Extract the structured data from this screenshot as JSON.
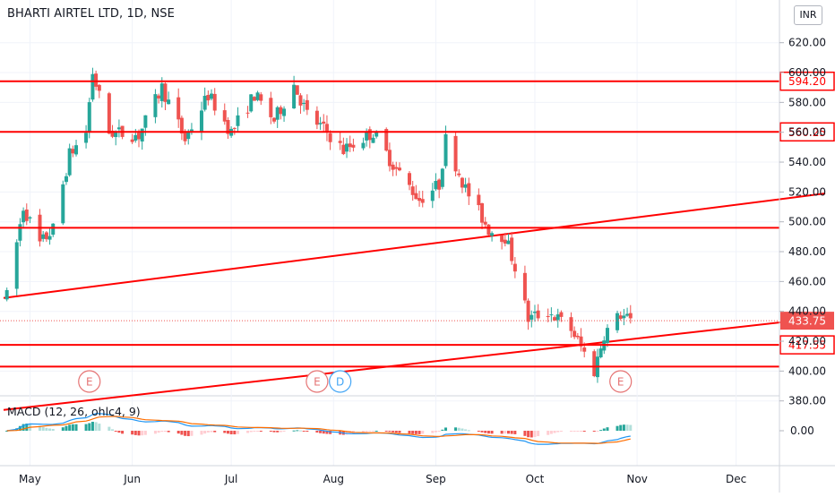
{
  "header": {
    "symbol_title": "BHARTI AIRTEL LTD, 1D, NSE",
    "currency": "INR"
  },
  "macd": {
    "title": "MACD (12, 26, ohlc4, 9)",
    "zero_label": "0.00"
  },
  "colors": {
    "up": "#26a69a",
    "down": "#ef5350",
    "line_red": "#ff0000",
    "macd_line": "#2196f3",
    "signal_line": "#ff6d00",
    "hist_pos": "#26a69a",
    "hist_pos_weak": "#b2dfdb",
    "hist_neg": "#ef5350",
    "hist_neg_weak": "#ffcdd2"
  },
  "chart_data": {
    "type": "candlestick",
    "price_axis": {
      "ticks": [
        {
          "value": 620,
          "label": "620.00"
        },
        {
          "value": 600,
          "label": "600.00"
        },
        {
          "value": 580,
          "label": "580.00"
        },
        {
          "value": 560,
          "label": "560.00"
        },
        {
          "value": 540,
          "label": "540.00"
        },
        {
          "value": 520,
          "label": "520.00"
        },
        {
          "value": 500,
          "label": "500.00"
        },
        {
          "value": 480,
          "label": "480.00"
        },
        {
          "value": 460,
          "label": "460.00"
        },
        {
          "value": 440,
          "label": "440.00"
        },
        {
          "value": 420,
          "label": "420.00"
        },
        {
          "value": 400,
          "label": "400.00"
        },
        {
          "value": 380,
          "label": "380.00"
        }
      ]
    },
    "time_axis": {
      "labels": [
        {
          "label": "May",
          "date": "2020-05-01"
        },
        {
          "label": "Jun",
          "date": "2020-06-01"
        },
        {
          "label": "Jul",
          "date": "2020-07-01"
        },
        {
          "label": "Aug",
          "date": "2020-08-01"
        },
        {
          "label": "Sep",
          "date": "2020-09-01"
        },
        {
          "label": "Oct",
          "date": "2020-10-01"
        },
        {
          "label": "Nov",
          "date": "2020-11-01"
        },
        {
          "label": "Dec",
          "date": "2020-12-01"
        }
      ]
    },
    "horizontal_levels": [
      {
        "price": 594.2,
        "label": "594.20"
      },
      {
        "price": 560.25,
        "label": "560.25"
      },
      {
        "price": 496.0,
        "label": ""
      },
      {
        "price": 417.55,
        "label": "417.55"
      },
      {
        "price": 403.0,
        "label": ""
      }
    ],
    "last_price": {
      "price": 433.75,
      "label": "433.75"
    },
    "trendlines": [
      {
        "from": {
          "date": "2020-04-23",
          "price": 449
        },
        "to": {
          "date": "2020-12-28",
          "price": 519
        }
      },
      {
        "from": {
          "date": "2020-04-23",
          "price": 374
        },
        "to": {
          "date": "2020-12-28",
          "price": 436
        }
      }
    ],
    "earnings_markers": [
      {
        "date": "2020-05-19",
        "label": "E",
        "color": "#e57373"
      },
      {
        "date": "2020-07-27",
        "label": "E",
        "color": "#e57373"
      },
      {
        "date": "2020-08-03",
        "label": "D",
        "color": "#42a5f5"
      },
      {
        "date": "2020-10-27",
        "label": "E",
        "color": "#e57373"
      }
    ],
    "ohlc_shape": {
      "start_date": "2020-04-24",
      "end_date": "2020-10-30",
      "anchors": [
        {
          "date": "2020-04-24",
          "price": 450
        },
        {
          "date": "2020-04-29",
          "price": 510
        },
        {
          "date": "2020-05-04",
          "price": 485
        },
        {
          "date": "2020-05-08",
          "price": 495
        },
        {
          "date": "2020-05-13",
          "price": 545
        },
        {
          "date": "2020-05-18",
          "price": 560
        },
        {
          "date": "2020-05-20",
          "price": 600
        },
        {
          "date": "2020-05-25",
          "price": 560
        },
        {
          "date": "2020-06-03",
          "price": 558
        },
        {
          "date": "2020-06-10",
          "price": 590
        },
        {
          "date": "2020-06-17",
          "price": 555
        },
        {
          "date": "2020-06-24",
          "price": 585
        },
        {
          "date": "2020-07-01",
          "price": 560
        },
        {
          "date": "2020-07-08",
          "price": 585
        },
        {
          "date": "2020-07-14",
          "price": 568
        },
        {
          "date": "2020-07-20",
          "price": 592
        },
        {
          "date": "2020-07-24",
          "price": 572
        },
        {
          "date": "2020-07-30",
          "price": 560
        },
        {
          "date": "2020-08-04",
          "price": 548
        },
        {
          "date": "2020-08-13",
          "price": 560
        },
        {
          "date": "2020-08-20",
          "price": 535
        },
        {
          "date": "2020-08-27",
          "price": 515
        },
        {
          "date": "2020-09-02",
          "price": 525
        },
        {
          "date": "2020-09-04",
          "price": 555
        },
        {
          "date": "2020-09-10",
          "price": 522
        },
        {
          "date": "2020-09-17",
          "price": 495
        },
        {
          "date": "2020-09-22",
          "price": 490
        },
        {
          "date": "2020-09-25",
          "price": 470
        },
        {
          "date": "2020-09-29",
          "price": 435
        },
        {
          "date": "2020-10-05",
          "price": 440
        },
        {
          "date": "2020-10-12",
          "price": 428
        },
        {
          "date": "2020-10-19",
          "price": 400
        },
        {
          "date": "2020-10-22",
          "price": 425
        },
        {
          "date": "2020-10-27",
          "price": 438
        },
        {
          "date": "2020-10-30",
          "price": 433
        }
      ]
    }
  }
}
